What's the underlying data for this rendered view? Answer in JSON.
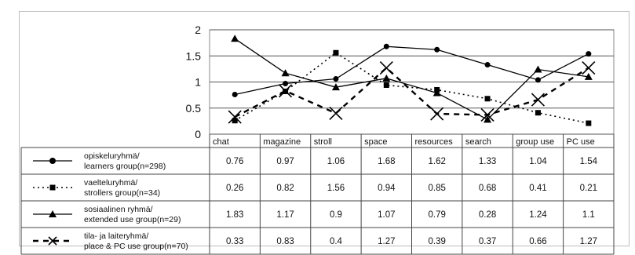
{
  "chart_data": {
    "type": "line",
    "title": "",
    "xlabel": "",
    "ylabel": "",
    "ylim": [
      0,
      2
    ],
    "yticks": [
      "0",
      "0.5",
      "1",
      "1.5",
      "2"
    ],
    "grid": "horizontal",
    "categories": [
      "chat",
      "magazine",
      "stroll",
      "space",
      "resources",
      "search",
      "group use",
      "PC use"
    ],
    "series": [
      {
        "name_line1": "opiskeluryhmä/",
        "name_line2": "learners group(n=298)",
        "line_style": "solid",
        "marker": "circle",
        "color": "#000000",
        "values": [
          0.76,
          0.97,
          1.06,
          1.68,
          1.62,
          1.33,
          1.04,
          1.54
        ]
      },
      {
        "name_line1": "vaelteluryhmä/",
        "name_line2": "strollers group(n=34)",
        "line_style": "dotted",
        "marker": "square",
        "color": "#000000",
        "values": [
          0.26,
          0.82,
          1.56,
          0.94,
          0.85,
          0.68,
          0.41,
          0.21
        ]
      },
      {
        "name_line1": "sosiaalinen ryhmä/",
        "name_line2": "extended use group(n=29)",
        "line_style": "solid",
        "marker": "triangle",
        "color": "#000000",
        "values": [
          1.83,
          1.17,
          0.9,
          1.07,
          0.79,
          0.28,
          1.24,
          1.1
        ]
      },
      {
        "name_line1": "tila- ja laiteryhmä/",
        "name_line2": "place & PC use group(n=70)",
        "line_style": "dashed",
        "marker": "x",
        "color": "#000000",
        "values": [
          0.33,
          0.83,
          0.4,
          1.27,
          0.39,
          0.37,
          0.66,
          1.27
        ]
      }
    ]
  }
}
